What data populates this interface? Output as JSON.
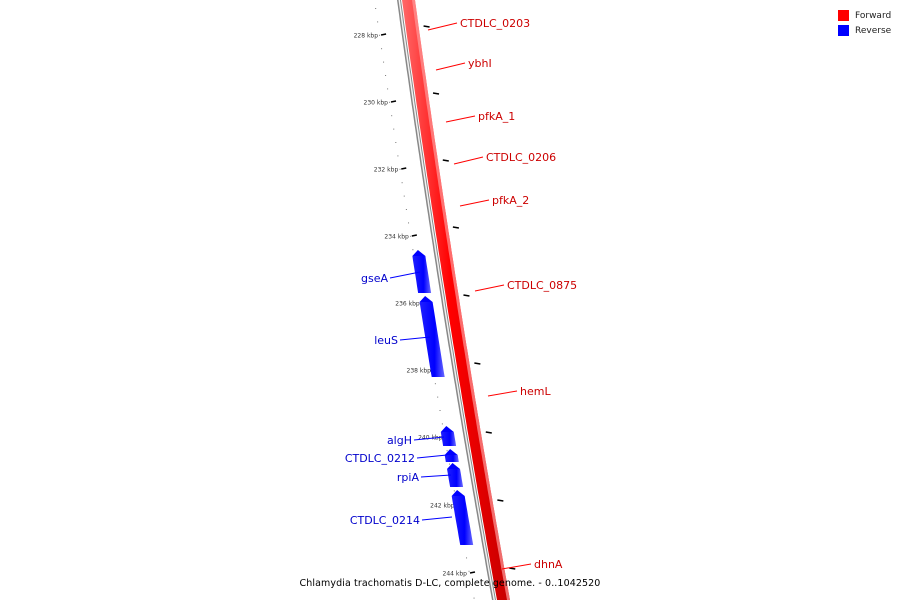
{
  "legend": {
    "forward_label": "Forward",
    "reverse_label": "Reverse",
    "forward_color": "#ff0000",
    "reverse_color": "#0000ff"
  },
  "caption": "Chlamydia trachomatis D-LC, complete genome. - 0..1042520",
  "ticks": [
    {
      "label": "228 kbp"
    },
    {
      "label": "230 kbp"
    },
    {
      "label": "232 kbp"
    },
    {
      "label": "234 kbp"
    },
    {
      "label": "236 kbp"
    },
    {
      "label": "238 kbp"
    },
    {
      "label": "240 kbp"
    },
    {
      "label": "242 kbp"
    },
    {
      "label": "244 kbp"
    }
  ],
  "forward_genes": [
    {
      "name": "CTDLC_0203"
    },
    {
      "name": "ybhI"
    },
    {
      "name": "pfkA_1"
    },
    {
      "name": "CTDLC_0206"
    },
    {
      "name": "pfkA_2"
    },
    {
      "name": "CTDLC_0875"
    },
    {
      "name": "hemL"
    },
    {
      "name": "dhnA"
    }
  ],
  "reverse_genes": [
    {
      "name": "gseA"
    },
    {
      "name": "leuS"
    },
    {
      "name": "algH"
    },
    {
      "name": "CTDLC_0212"
    },
    {
      "name": "rpiA"
    },
    {
      "name": "CTDLC_0214"
    }
  ]
}
